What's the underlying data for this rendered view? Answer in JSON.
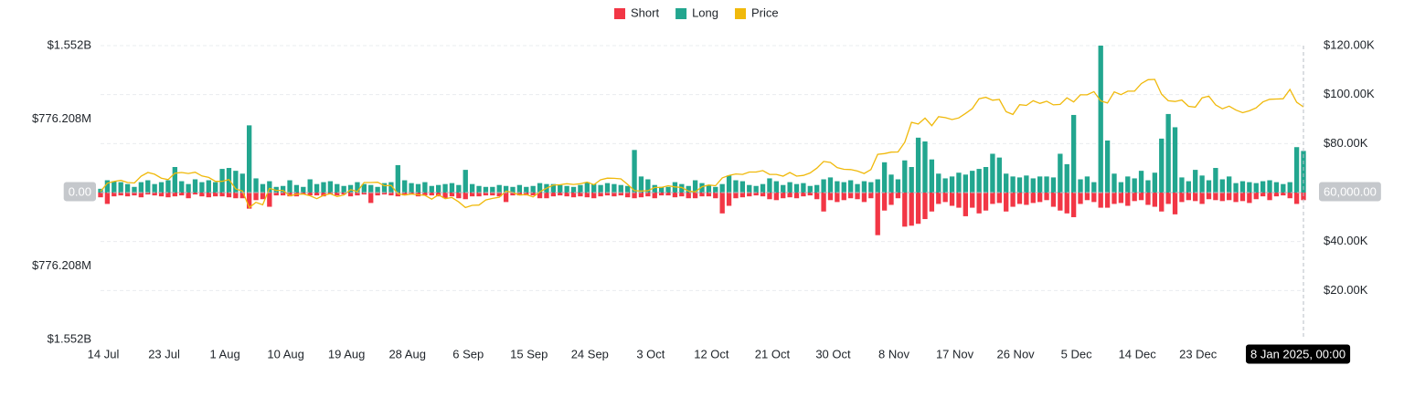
{
  "chart_data": {
    "type": "bar",
    "categories": [
      "14 Jul",
      null,
      null,
      null,
      null,
      null,
      null,
      null,
      null,
      "23 Jul",
      null,
      null,
      null,
      null,
      null,
      null,
      null,
      null,
      "1 Aug",
      null,
      null,
      null,
      null,
      null,
      null,
      null,
      null,
      "10 Aug",
      null,
      null,
      null,
      null,
      null,
      null,
      null,
      null,
      "19 Aug",
      null,
      null,
      null,
      null,
      null,
      null,
      null,
      null,
      "28 Aug",
      null,
      null,
      null,
      null,
      null,
      null,
      null,
      null,
      "6 Sep",
      null,
      null,
      null,
      null,
      null,
      null,
      null,
      null,
      "15 Sep",
      null,
      null,
      null,
      null,
      null,
      null,
      null,
      null,
      "24 Sep",
      null,
      null,
      null,
      null,
      null,
      null,
      null,
      null,
      "3 Oct",
      null,
      null,
      null,
      null,
      null,
      null,
      null,
      null,
      "12 Oct",
      null,
      null,
      null,
      null,
      null,
      null,
      null,
      null,
      "21 Oct",
      null,
      null,
      null,
      null,
      null,
      null,
      null,
      null,
      "30 Oct",
      null,
      null,
      null,
      null,
      null,
      null,
      null,
      null,
      "8 Nov",
      null,
      null,
      null,
      null,
      null,
      null,
      null,
      null,
      "17 Nov",
      null,
      null,
      null,
      null,
      null,
      null,
      null,
      null,
      "26 Nov",
      null,
      null,
      null,
      null,
      null,
      null,
      null,
      null,
      "5 Dec",
      null,
      null,
      null,
      null,
      null,
      null,
      null,
      null,
      "14 Dec",
      null,
      null,
      null,
      null,
      null,
      null,
      null,
      null,
      "23 Dec",
      null,
      null,
      null,
      null,
      null,
      null,
      null,
      null,
      null,
      null,
      null,
      null,
      null,
      null,
      null,
      "8 Jan 2025, 00:00"
    ],
    "series": [
      {
        "name": "Short",
        "color": "#f23645",
        "values": [
          -50000000,
          -120000000,
          -40000000,
          -30000000,
          -40000000,
          -30000000,
          -50000000,
          -20000000,
          -30000000,
          -40000000,
          -50000000,
          -40000000,
          -30000000,
          -60000000,
          -20000000,
          -40000000,
          -50000000,
          -40000000,
          -40000000,
          -50000000,
          -60000000,
          -60000000,
          -170000000,
          -80000000,
          -70000000,
          -150000000,
          -30000000,
          -30000000,
          -40000000,
          -40000000,
          -20000000,
          -30000000,
          -30000000,
          -40000000,
          -20000000,
          -30000000,
          -20000000,
          -40000000,
          -30000000,
          -20000000,
          -110000000,
          -30000000,
          -20000000,
          -30000000,
          -40000000,
          -30000000,
          -20000000,
          -40000000,
          -30000000,
          -30000000,
          -40000000,
          -60000000,
          -40000000,
          -60000000,
          -70000000,
          -40000000,
          -40000000,
          -30000000,
          -30000000,
          -40000000,
          -100000000,
          -30000000,
          -30000000,
          -30000000,
          -30000000,
          -60000000,
          -60000000,
          -40000000,
          -30000000,
          -40000000,
          -50000000,
          -40000000,
          -50000000,
          -60000000,
          -40000000,
          -30000000,
          -40000000,
          -30000000,
          -50000000,
          -60000000,
          -50000000,
          -40000000,
          -60000000,
          -30000000,
          -30000000,
          -50000000,
          -40000000,
          -60000000,
          -60000000,
          -40000000,
          -40000000,
          -60000000,
          -220000000,
          -140000000,
          -60000000,
          -50000000,
          -40000000,
          -30000000,
          -40000000,
          -70000000,
          -80000000,
          -60000000,
          -50000000,
          -60000000,
          -40000000,
          -30000000,
          -70000000,
          -200000000,
          -80000000,
          -100000000,
          -80000000,
          -60000000,
          -70000000,
          -100000000,
          -60000000,
          -450000000,
          -190000000,
          -130000000,
          -60000000,
          -360000000,
          -350000000,
          -330000000,
          -280000000,
          -200000000,
          -120000000,
          -100000000,
          -140000000,
          -160000000,
          -250000000,
          -160000000,
          -220000000,
          -190000000,
          -120000000,
          -110000000,
          -200000000,
          -150000000,
          -120000000,
          -130000000,
          -110000000,
          -100000000,
          -80000000,
          -150000000,
          -190000000,
          -220000000,
          -260000000,
          -120000000,
          -80000000,
          -100000000,
          -160000000,
          -160000000,
          -120000000,
          -110000000,
          -140000000,
          -90000000,
          -80000000,
          -130000000,
          -150000000,
          -200000000,
          -120000000,
          -230000000,
          -100000000,
          -80000000,
          -90000000,
          -120000000,
          -70000000,
          -80000000,
          -90000000,
          -80000000,
          -100000000,
          -90000000,
          -110000000,
          -70000000,
          -40000000,
          -80000000,
          -40000000,
          -30000000,
          -60000000,
          -120000000,
          -80000000
        ]
      },
      {
        "name": "Long",
        "color": "#22a68f",
        "values": [
          40000000,
          130000000,
          120000000,
          110000000,
          90000000,
          60000000,
          110000000,
          130000000,
          90000000,
          110000000,
          130000000,
          270000000,
          120000000,
          90000000,
          140000000,
          110000000,
          130000000,
          110000000,
          250000000,
          260000000,
          230000000,
          200000000,
          710000000,
          150000000,
          90000000,
          120000000,
          60000000,
          70000000,
          130000000,
          80000000,
          60000000,
          140000000,
          90000000,
          110000000,
          120000000,
          90000000,
          70000000,
          80000000,
          110000000,
          90000000,
          80000000,
          60000000,
          100000000,
          110000000,
          290000000,
          130000000,
          100000000,
          90000000,
          110000000,
          70000000,
          80000000,
          90000000,
          100000000,
          80000000,
          240000000,
          90000000,
          70000000,
          60000000,
          60000000,
          80000000,
          70000000,
          60000000,
          80000000,
          60000000,
          70000000,
          100000000,
          90000000,
          90000000,
          80000000,
          70000000,
          60000000,
          80000000,
          110000000,
          90000000,
          80000000,
          100000000,
          90000000,
          80000000,
          70000000,
          450000000,
          170000000,
          140000000,
          80000000,
          60000000,
          60000000,
          110000000,
          90000000,
          70000000,
          130000000,
          100000000,
          80000000,
          60000000,
          90000000,
          180000000,
          130000000,
          120000000,
          80000000,
          70000000,
          90000000,
          150000000,
          120000000,
          80000000,
          110000000,
          90000000,
          100000000,
          70000000,
          80000000,
          140000000,
          160000000,
          120000000,
          110000000,
          130000000,
          90000000,
          120000000,
          110000000,
          140000000,
          320000000,
          190000000,
          140000000,
          340000000,
          270000000,
          580000000,
          540000000,
          350000000,
          200000000,
          150000000,
          170000000,
          210000000,
          190000000,
          230000000,
          250000000,
          270000000,
          410000000,
          370000000,
          200000000,
          170000000,
          160000000,
          180000000,
          150000000,
          170000000,
          170000000,
          160000000,
          410000000,
          300000000,
          820000000,
          140000000,
          170000000,
          110000000,
          1552416000,
          550000000,
          200000000,
          110000000,
          170000000,
          150000000,
          230000000,
          130000000,
          210000000,
          570000000,
          830000000,
          690000000,
          160000000,
          120000000,
          240000000,
          180000000,
          130000000,
          260000000,
          140000000,
          170000000,
          100000000,
          120000000,
          110000000,
          100000000,
          120000000,
          130000000,
          110000000,
          90000000,
          110000000,
          480000000,
          440000000
        ]
      },
      {
        "name": "Price",
        "color": "#f0b90b",
        "axis": "y2",
        "values": [
          60500,
          63800,
          64600,
          65000,
          64100,
          63900,
          66700,
          68200,
          67500,
          65900,
          65300,
          67900,
          68200,
          67800,
          68300,
          66800,
          66200,
          64600,
          64600,
          65300,
          61500,
          60600,
          53900,
          56000,
          55000,
          61700,
          60900,
          60900,
          58700,
          59300,
          59400,
          58700,
          57500,
          58900,
          59500,
          58400,
          59000,
          61200,
          60400,
          64100,
          64100,
          64200,
          62800,
          62900,
          59500,
          59000,
          59400,
          59100,
          58900,
          57300,
          59100,
          57500,
          58000,
          56200,
          53900,
          54800,
          54900,
          57000,
          57600,
          58100,
          60600,
          60000,
          59000,
          59200,
          58200,
          60300,
          61800,
          63000,
          63200,
          63600,
          63300,
          63600,
          64300,
          63200,
          65200,
          65900,
          65800,
          65600,
          63300,
          60800,
          60600,
          60800,
          62100,
          62100,
          62800,
          62300,
          62100,
          60600,
          60300,
          62400,
          63100,
          62800,
          66000,
          67000,
          67600,
          67400,
          68400,
          68400,
          69000,
          67400,
          67400,
          66700,
          68200,
          66700,
          67000,
          68000,
          70000,
          72700,
          72300,
          70200,
          69500,
          69400,
          68800,
          67800,
          69400,
          75600,
          75900,
          76500,
          76600,
          80500,
          88700,
          88000,
          90400,
          87300,
          91000,
          90600,
          89800,
          90500,
          92300,
          94300,
          98300,
          98900,
          97700,
          98000,
          93000,
          91900,
          95900,
          95600,
          97500,
          96400,
          97300,
          95800,
          96000,
          98700,
          97000,
          99900,
          99900,
          101200,
          97400,
          96600,
          101100,
          100000,
          101400,
          101400,
          104500,
          106100,
          106200,
          100200,
          97500,
          97200,
          97800,
          95200,
          94900,
          98700,
          99400,
          95800,
          94200,
          95300,
          93700,
          92600,
          93400,
          94600,
          97000,
          98100,
          98200,
          98300,
          102100,
          96900,
          95000
        ]
      }
    ],
    "ylim": [
      -1552416000,
      1552416000
    ],
    "yticks": [
      {
        "value": 1552416000,
        "label": "$1.552B"
      },
      {
        "value": 776208000,
        "label": "$776.208M"
      },
      {
        "value": 0,
        "label": "0.00"
      },
      {
        "value": -776208000,
        "label": "$776.208M"
      },
      {
        "value": -1552416000,
        "label": "$1.552B"
      }
    ],
    "y2lim": [
      0,
      120000
    ],
    "y2ticks": [
      {
        "value": 120000,
        "label": "$120.00K"
      },
      {
        "value": 100000,
        "label": "$100.00K"
      },
      {
        "value": 80000,
        "label": "$80.00K"
      },
      {
        "value": 60000,
        "label": "60,000.00"
      },
      {
        "value": 40000,
        "label": "$40.00K"
      },
      {
        "value": 20000,
        "label": "$20.00K"
      }
    ],
    "grid": true,
    "legend": "top",
    "crosshair": true
  }
}
